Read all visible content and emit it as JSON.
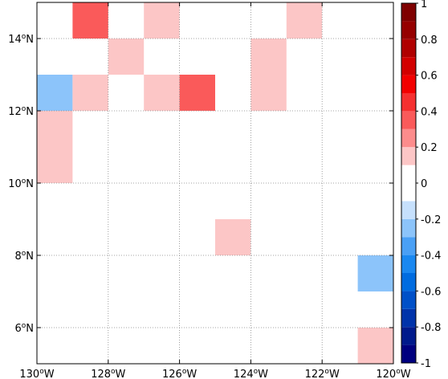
{
  "chart_data": {
    "type": "heatmap",
    "title": "",
    "xlabel": "",
    "ylabel": "",
    "xlim": [
      130,
      120
    ],
    "ylim": [
      5,
      15
    ],
    "cell_size_deg": 1,
    "grid": true,
    "x_ticks": [
      {
        "value": 130,
        "label": "130°W"
      },
      {
        "value": 128,
        "label": "128°W"
      },
      {
        "value": 126,
        "label": "126°W"
      },
      {
        "value": 124,
        "label": "124°W"
      },
      {
        "value": 122,
        "label": "122°W"
      },
      {
        "value": 120,
        "label": "120°W"
      }
    ],
    "y_ticks": [
      {
        "value": 6,
        "label": "6°N"
      },
      {
        "value": 8,
        "label": "8°N"
      },
      {
        "value": 10,
        "label": "10°N"
      },
      {
        "value": 12,
        "label": "12°N"
      },
      {
        "value": 14,
        "label": "14°N"
      }
    ],
    "cells": [
      {
        "lon_west": 129,
        "lat_south": 14,
        "value": 0.3
      },
      {
        "lon_west": 127,
        "lat_south": 14,
        "value": 0.1
      },
      {
        "lon_west": 123,
        "lat_south": 14,
        "value": 0.1
      },
      {
        "lon_west": 128,
        "lat_south": 13,
        "value": 0.1
      },
      {
        "lon_west": 124,
        "lat_south": 13,
        "value": 0.1
      },
      {
        "lon_west": 130,
        "lat_south": 12,
        "value": -0.3
      },
      {
        "lon_west": 129,
        "lat_south": 12,
        "value": 0.1
      },
      {
        "lon_west": 127,
        "lat_south": 12,
        "value": 0.1
      },
      {
        "lon_west": 126,
        "lat_south": 12,
        "value": 0.3
      },
      {
        "lon_west": 125,
        "lat_south": 12,
        "value": -0.1
      },
      {
        "lon_west": 124,
        "lat_south": 12,
        "value": 0.1
      },
      {
        "lon_west": 130,
        "lat_south": 11,
        "value": 0.1
      },
      {
        "lon_west": 130,
        "lat_south": 10,
        "value": 0.1
      },
      {
        "lon_west": 123,
        "lat_south": 10,
        "value": -0.1
      },
      {
        "lon_west": 130,
        "lat_south": 9,
        "value": -0.1
      },
      {
        "lon_west": 128,
        "lat_south": 9,
        "value": -0.1
      },
      {
        "lon_west": 126,
        "lat_south": 9,
        "value": -0.1
      },
      {
        "lon_west": 130,
        "lat_south": 8,
        "value": -0.1
      },
      {
        "lon_west": 129,
        "lat_south": 8,
        "value": -0.1
      },
      {
        "lon_west": 125,
        "lat_south": 8,
        "value": 0.1
      },
      {
        "lon_west": 121,
        "lat_south": 8,
        "value": -0.1
      },
      {
        "lon_west": 130,
        "lat_south": 7,
        "value": -0.1
      },
      {
        "lon_west": 127,
        "lat_south": 7,
        "value": -0.1
      },
      {
        "lon_west": 123,
        "lat_south": 7,
        "value": -0.1
      },
      {
        "lon_west": 121,
        "lat_south": 7,
        "value": -0.3
      },
      {
        "lon_west": 130,
        "lat_south": 6,
        "value": -0.1
      },
      {
        "lon_west": 123,
        "lat_south": 6,
        "value": -0.1
      },
      {
        "lon_west": 125,
        "lat_south": 5,
        "value": -0.1
      },
      {
        "lon_west": 121,
        "lat_south": 5,
        "value": 0.1
      }
    ],
    "colorbar": {
      "range": [
        -1,
        1
      ],
      "ticks": [
        {
          "value": 1,
          "label": "1"
        },
        {
          "value": 0.8,
          "label": "0.8"
        },
        {
          "value": 0.6,
          "label": "0.6"
        },
        {
          "value": 0.4,
          "label": "0.4"
        },
        {
          "value": 0.2,
          "label": "0.2"
        },
        {
          "value": 0,
          "label": "0"
        },
        {
          "value": -0.2,
          "label": "-0.2"
        },
        {
          "value": -0.4,
          "label": "-0.4"
        },
        {
          "value": -0.6,
          "label": "-0.6"
        },
        {
          "value": -0.8,
          "label": "-0.8"
        },
        {
          "value": -1,
          "label": "-1"
        }
      ],
      "bins": [
        {
          "from": -1.0,
          "to": -0.9,
          "color": "#00007f"
        },
        {
          "from": -0.9,
          "to": -0.8,
          "color": "#001a8c"
        },
        {
          "from": -0.8,
          "to": -0.7,
          "color": "#0033aa"
        },
        {
          "from": -0.7,
          "to": -0.6,
          "color": "#0050c8"
        },
        {
          "from": -0.6,
          "to": -0.5,
          "color": "#006ce0"
        },
        {
          "from": -0.5,
          "to": -0.4,
          "color": "#1a88f0"
        },
        {
          "from": -0.4,
          "to": -0.3,
          "color": "#4aa0f5"
        },
        {
          "from": -0.3,
          "to": -0.2,
          "color": "#8cc4fa"
        },
        {
          "from": -0.2,
          "to": -0.1,
          "color": "#c6e0fc"
        },
        {
          "from": -0.1,
          "to": 0.0,
          "color": "#ffffff"
        },
        {
          "from": 0.0,
          "to": 0.1,
          "color": "#ffffff"
        },
        {
          "from": 0.1,
          "to": 0.2,
          "color": "#fcc6c6"
        },
        {
          "from": 0.2,
          "to": 0.3,
          "color": "#fc8c8c"
        },
        {
          "from": 0.3,
          "to": 0.4,
          "color": "#fa5a5a"
        },
        {
          "from": 0.4,
          "to": 0.5,
          "color": "#f53030"
        },
        {
          "from": 0.5,
          "to": 0.6,
          "color": "#f20000"
        },
        {
          "from": 0.6,
          "to": 0.7,
          "color": "#d20000"
        },
        {
          "from": 0.7,
          "to": 0.8,
          "color": "#b00000"
        },
        {
          "from": 0.8,
          "to": 0.9,
          "color": "#950000"
        },
        {
          "from": 0.9,
          "to": 1.0,
          "color": "#7f0000"
        }
      ]
    }
  }
}
